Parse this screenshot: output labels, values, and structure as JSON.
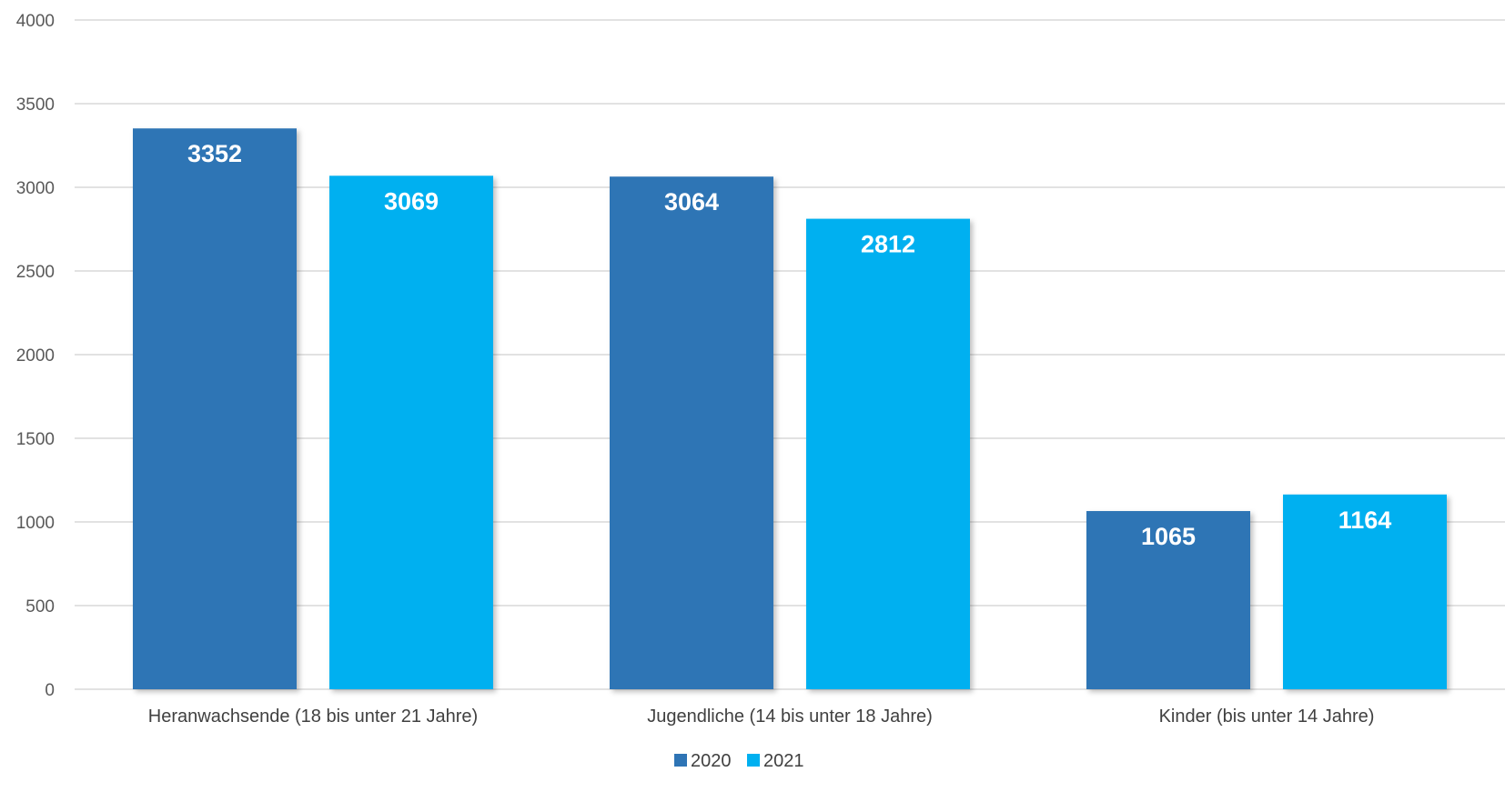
{
  "chart_data": {
    "type": "bar",
    "categories": [
      "Heranwachsende (18 bis unter 21 Jahre)",
      "Jugendliche (14 bis unter 18 Jahre)",
      "Kinder (bis unter 14 Jahre)"
    ],
    "series": [
      {
        "name": "2020",
        "values": [
          3352,
          3064,
          1065
        ],
        "color": "#2e74b5"
      },
      {
        "name": "2021",
        "values": [
          3069,
          2812,
          1164
        ],
        "color": "#00b0f0"
      }
    ],
    "title": "",
    "xlabel": "",
    "ylabel": "",
    "ylim": [
      0,
      4000
    ],
    "yticks": [
      0,
      500,
      1000,
      1500,
      2000,
      2500,
      3000,
      3500,
      4000
    ],
    "grid": true,
    "legend": "bottom-center",
    "data_labels": true
  }
}
